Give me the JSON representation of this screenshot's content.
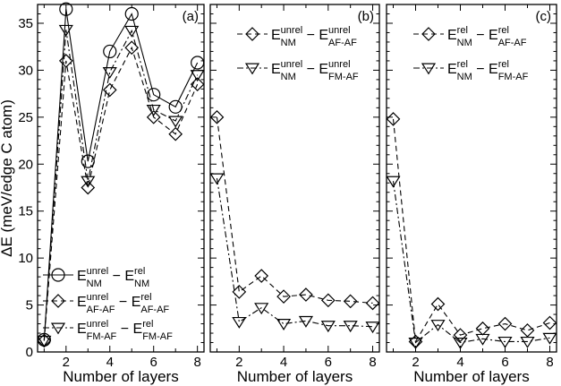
{
  "chart_data": [
    {
      "type": "line",
      "panel_label": "(a)",
      "xlabel": "Number of layers",
      "ylabel": "ΔE (meV/edge C atom)",
      "xlim": [
        0.7,
        8.3
      ],
      "ylim": [
        0,
        37
      ],
      "xticks": [
        2,
        4,
        6,
        8
      ],
      "yticks": [
        0,
        5,
        10,
        15,
        20,
        25,
        30,
        35
      ],
      "legend_position": "bottom-left",
      "series": [
        {
          "key": "circle",
          "marker": "circle",
          "dash": "none",
          "label": {
            "main": "E",
            "sup1": "unrel",
            "sub1": "NM",
            "op": " − ",
            "main2": "E",
            "sup2": "rel",
            "sub2": "NM"
          },
          "x": [
            1,
            2,
            3,
            4,
            5,
            6,
            7,
            8
          ],
          "y": [
            1.3,
            36.5,
            20.3,
            32.0,
            36.0,
            27.4,
            26.1,
            30.8
          ]
        },
        {
          "key": "diamond",
          "marker": "diamond",
          "dash": "6,4",
          "label": {
            "main": "E",
            "sup1": "unrel",
            "sub1": "AF-AF",
            "op": " − ",
            "main2": "E",
            "sup2": "rel",
            "sub2": "AF-AF"
          },
          "x": [
            1,
            2,
            3,
            4,
            5,
            6,
            7,
            8
          ],
          "y": [
            1.2,
            31.0,
            17.5,
            27.9,
            32.4,
            25.0,
            23.2,
            28.5
          ]
        },
        {
          "key": "triangle",
          "marker": "triangle",
          "dash": "7,3,2,3",
          "label": {
            "main": "E",
            "sup1": "unrel",
            "sub1": "FM-AF",
            "op": " − ",
            "main2": "E",
            "sup2": "rel",
            "sub2": "FM-AF"
          },
          "x": [
            1,
            2,
            3,
            4,
            5,
            6,
            7,
            8
          ],
          "y": [
            1.2,
            34.3,
            18.2,
            29.8,
            34.2,
            25.8,
            24.6,
            29.5
          ]
        }
      ]
    },
    {
      "type": "line",
      "panel_label": "(b)",
      "xlabel": "Number of layers",
      "xlim": [
        0.7,
        8.3
      ],
      "ylim": [
        0,
        37
      ],
      "xticks": [
        2,
        4,
        6,
        8
      ],
      "legend_position": "top-center",
      "series": [
        {
          "key": "diamond",
          "marker": "diamond",
          "dash": "6,4",
          "label": {
            "main": "E",
            "sup1": "unrel",
            "sub1": "NM",
            "op": " − ",
            "main2": "E",
            "sup2": "unrel",
            "sub2": "AF-AF"
          },
          "x": [
            1,
            2,
            3,
            4,
            5,
            6,
            7,
            8
          ],
          "y": [
            25.0,
            6.4,
            8.1,
            5.9,
            6.1,
            5.5,
            5.4,
            5.2
          ]
        },
        {
          "key": "triangle",
          "marker": "triangle",
          "dash": "7,3,2,3",
          "label": {
            "main": "E",
            "sup1": "unrel",
            "sub1": "NM",
            "op": " − ",
            "main2": "E",
            "sup2": "unrel",
            "sub2": "FM-AF"
          },
          "x": [
            1,
            2,
            3,
            4,
            5,
            6,
            7,
            8
          ],
          "y": [
            18.5,
            3.2,
            4.7,
            3.0,
            3.3,
            2.8,
            2.8,
            2.7
          ]
        }
      ]
    },
    {
      "type": "line",
      "panel_label": "(c)",
      "xlabel": "Number of layers",
      "xlim": [
        0.7,
        8.3
      ],
      "ylim": [
        0,
        37
      ],
      "xticks": [
        2,
        4,
        6,
        8
      ],
      "legend_position": "top-center",
      "series": [
        {
          "key": "diamond",
          "marker": "diamond",
          "dash": "6,4",
          "label": {
            "main": "E",
            "sup1": "rel",
            "sub1": "NM",
            "op": " − ",
            "main2": "E",
            "sup2": "rel",
            "sub2": "AF-AF"
          },
          "x": [
            1,
            2,
            3,
            4,
            5,
            6,
            7,
            8
          ],
          "y": [
            24.8,
            1.1,
            5.1,
            1.8,
            2.5,
            3.0,
            2.3,
            3.1
          ]
        },
        {
          "key": "triangle",
          "marker": "triangle",
          "dash": "7,3,2,3",
          "label": {
            "main": "E",
            "sup1": "rel",
            "sub1": "NM",
            "op": " − ",
            "main2": "E",
            "sup2": "rel",
            "sub2": "FM-AF"
          },
          "x": [
            1,
            2,
            3,
            4,
            5,
            6,
            7,
            8
          ],
          "y": [
            18.2,
            1.0,
            2.9,
            1.0,
            1.4,
            1.1,
            1.1,
            1.5
          ]
        }
      ]
    }
  ]
}
